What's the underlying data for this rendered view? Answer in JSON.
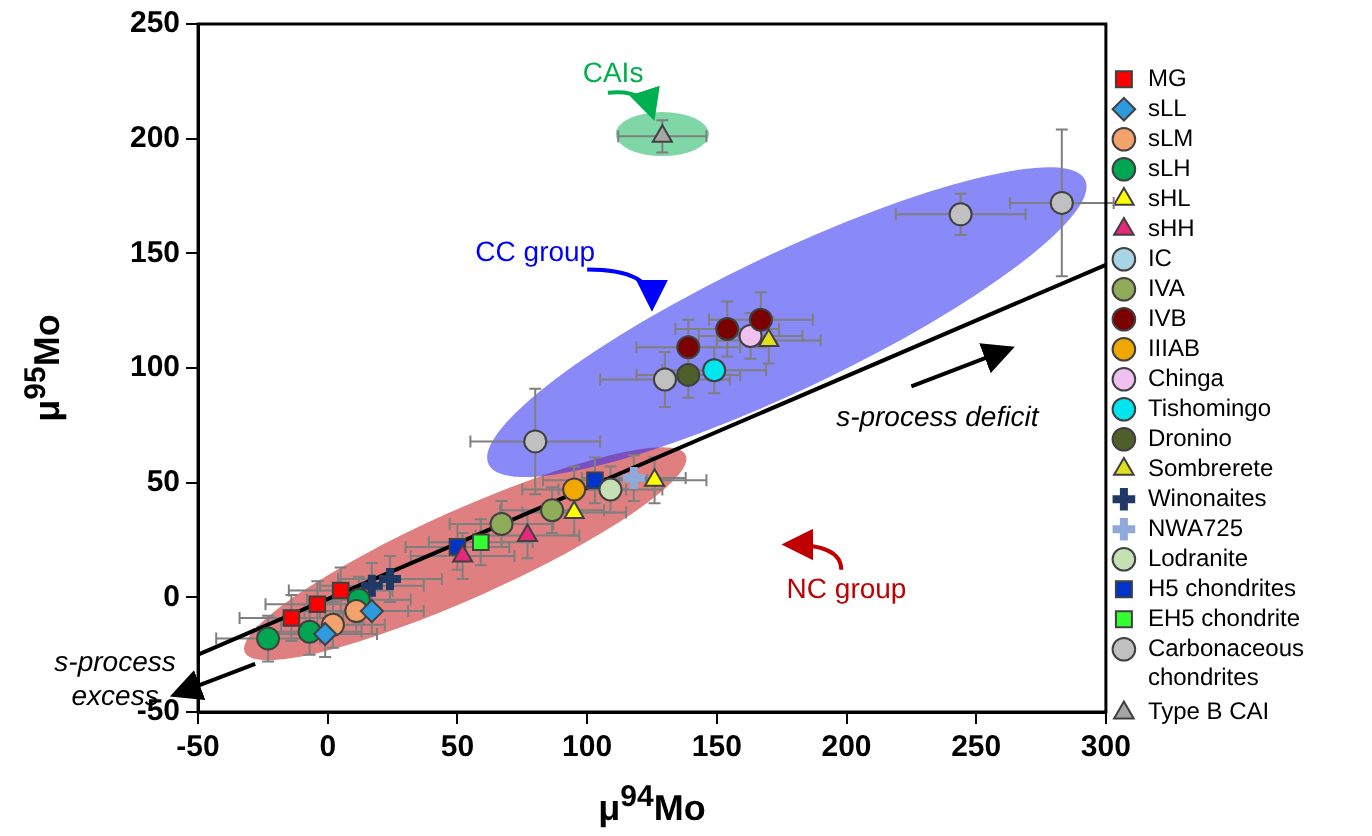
{
  "chart_data": {
    "type": "scatter",
    "xlabel": "μ$^{94}$Mo",
    "ylabel": "μ$^{95}$Mo",
    "xlim": [
      -50,
      300
    ],
    "xticks": [
      -50,
      0,
      50,
      100,
      150,
      200,
      250,
      300
    ],
    "ylim": [
      -50,
      250
    ],
    "yticks": [
      -50,
      0,
      50,
      100,
      150,
      200,
      250
    ],
    "grid": false,
    "legend": "right",
    "annotations": [
      "CAIs",
      "CC group",
      "NC group",
      "s-process deficit",
      "s-process excess"
    ],
    "series": [
      {
        "type": "line",
        "x": [
          -50,
          300
        ],
        "values": [
          -25,
          145
        ],
        "color": "#000000",
        "marker": "none"
      },
      {
        "name": "MG",
        "marker": "square",
        "color": "#ff0000",
        "x": [
          -14,
          -4,
          5
        ],
        "values": [
          -9,
          -3,
          3
        ],
        "xerrors": [
          20,
          20,
          20
        ],
        "errors": [
          10,
          10,
          10
        ]
      },
      {
        "name": "sLL",
        "marker": "diamond",
        "color": "#2e9be0",
        "x": [
          -1,
          17
        ],
        "values": [
          -16,
          -6
        ],
        "xerrors": [
          20,
          20
        ],
        "errors": [
          10,
          10
        ]
      },
      {
        "name": "sLM",
        "marker": "circle",
        "color": "#f4a26c",
        "x": [
          2,
          11
        ],
        "values": [
          -12,
          -6
        ],
        "xerrors": [
          20,
          20
        ],
        "errors": [
          10,
          10
        ]
      },
      {
        "name": "sLH",
        "marker": "circle",
        "color": "#00a651",
        "x": [
          -23,
          -7,
          12
        ],
        "values": [
          -18,
          -15,
          -1
        ],
        "xerrors": [
          20,
          20,
          20
        ],
        "errors": [
          10,
          10,
          10
        ]
      },
      {
        "name": "sHL",
        "marker": "triangle",
        "color": "#ffff00",
        "x": [
          95,
          126
        ],
        "values": [
          37,
          51
        ],
        "xerrors": [
          20,
          20
        ],
        "errors": [
          10,
          10
        ]
      },
      {
        "name": "sHH",
        "marker": "triangle",
        "color": "#e6287a",
        "x": [
          52,
          77
        ],
        "values": [
          18,
          27
        ],
        "xerrors": [
          20,
          20
        ],
        "errors": [
          10,
          10
        ]
      },
      {
        "name": "IC",
        "marker": "circle",
        "color": "#a8d4e6"
      },
      {
        "name": "IVA",
        "marker": "circle",
        "color": "#8fac5a",
        "x": [
          67,
          86.5
        ],
        "values": [
          32,
          38
        ],
        "xerrors": [
          20,
          20
        ],
        "errors": [
          10,
          10
        ]
      },
      {
        "name": "IVB",
        "marker": "circle",
        "color": "#7b0000",
        "x": [
          139,
          154,
          167
        ],
        "values": [
          109,
          117,
          121
        ],
        "xerrors": [
          20,
          20,
          20
        ],
        "errors": [
          12,
          12,
          12
        ]
      },
      {
        "name": "IIIAB",
        "marker": "circle",
        "color": "#f0a800",
        "x": [
          95
        ],
        "values": [
          47
        ],
        "xerrors": [
          20
        ],
        "errors": [
          10
        ]
      },
      {
        "name": "Chinga",
        "marker": "circle",
        "color": "#f0c0f0",
        "x": [
          163
        ],
        "values": [
          114
        ],
        "xerrors": [
          20
        ],
        "errors": [
          10
        ]
      },
      {
        "name": "Tishomingo",
        "marker": "circle",
        "color": "#00e5ee",
        "x": [
          149
        ],
        "values": [
          99
        ],
        "xerrors": [
          20
        ],
        "errors": [
          10
        ]
      },
      {
        "name": "Dronino",
        "marker": "circle",
        "color": "#4f5f2b",
        "x": [
          139
        ],
        "values": [
          97
        ],
        "xerrors": [
          20
        ],
        "errors": [
          10
        ]
      },
      {
        "name": "Sombrerete",
        "marker": "triangle",
        "color": "#e0e020",
        "x": [
          170
        ],
        "values": [
          112
        ],
        "xerrors": [
          20
        ],
        "errors": [
          10
        ]
      },
      {
        "name": "Winonaites",
        "marker": "cross",
        "color": "#1f3864",
        "x": [
          17,
          24
        ],
        "values": [
          5,
          8
        ],
        "xerrors": [
          20,
          20
        ],
        "errors": [
          10,
          10
        ]
      },
      {
        "name": "NWA725",
        "marker": "cross",
        "color": "#8eaadb",
        "x": [
          118
        ],
        "values": [
          52
        ],
        "xerrors": [
          20
        ],
        "errors": [
          10
        ]
      },
      {
        "name": "Lodranite",
        "marker": "circle",
        "color": "#c5e0b4",
        "x": [
          109
        ],
        "values": [
          47
        ],
        "xerrors": [
          20
        ],
        "errors": [
          10
        ]
      },
      {
        "name": "H5 chondrites",
        "marker": "square",
        "color": "#0033cc",
        "x": [
          50,
          103
        ],
        "values": [
          22,
          51
        ],
        "xerrors": [
          20,
          20
        ],
        "errors": [
          10,
          10
        ]
      },
      {
        "name": "EH5 chondrite",
        "marker": "square",
        "color": "#33ff33",
        "x": [
          59
        ],
        "values": [
          24
        ],
        "xerrors": [
          20
        ],
        "errors": [
          10
        ]
      },
      {
        "name": "Carbonaceous chondrites",
        "marker": "circle",
        "color": "#c0c0c0",
        "x": [
          80,
          130,
          244,
          283
        ],
        "values": [
          68,
          95,
          167,
          172
        ],
        "xerrors": [
          25,
          25,
          25,
          20
        ],
        "errors": [
          23,
          12,
          9,
          32
        ]
      },
      {
        "name": "Type B CAI",
        "marker": "triangle",
        "color": "#a6a6a6",
        "x": [
          129
        ],
        "values": [
          201
        ],
        "xerrors": [
          17
        ],
        "errors": [
          7
        ]
      }
    ]
  }
}
